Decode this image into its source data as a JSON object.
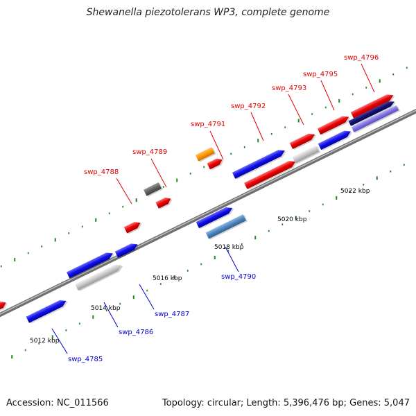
{
  "title": "Shewanella piezotolerans WP3, complete genome",
  "footer": {
    "accession": "Accession: NC_011566",
    "summary": "Topology: circular; Length: 5,396,476 bp; Genes: 5,047"
  },
  "colors": {
    "backbone": "#8a8a8a",
    "tick": "#1a8a1a",
    "label_red": "#e00000",
    "label_blue": "#0000cc"
  },
  "ruler_labels": [
    "5012 kbp",
    "5014 kbp",
    "5016 kbp",
    "5018 kbp",
    "5020 kbp",
    "5022 kbp"
  ],
  "features": [
    {
      "color": "red"
    },
    {
      "color": "blue"
    },
    {
      "color": "silver"
    },
    {
      "color": "blue"
    },
    {
      "color": "red"
    },
    {
      "color": "blue"
    },
    {
      "color": "gray"
    },
    {
      "color": "red"
    },
    {
      "color": "red"
    },
    {
      "color": "blue"
    },
    {
      "color": "steelblue"
    },
    {
      "color": "orange"
    },
    {
      "color": "red"
    },
    {
      "color": "blue"
    },
    {
      "color": "red"
    },
    {
      "color": "silver"
    },
    {
      "color": "red"
    },
    {
      "color": "blue"
    },
    {
      "color": "red"
    },
    {
      "color": "navy"
    },
    {
      "color": "lavender"
    },
    {
      "color": "red"
    }
  ],
  "gene_labels": [
    {
      "text": "swp_4788",
      "color": "red"
    },
    {
      "text": "swp_4789",
      "color": "red"
    },
    {
      "text": "swp_4791",
      "color": "red"
    },
    {
      "text": "swp_4792",
      "color": "red"
    },
    {
      "text": "swp_4793",
      "color": "red"
    },
    {
      "text": "swp_4795",
      "color": "red"
    },
    {
      "text": "swp_4796",
      "color": "red"
    },
    {
      "text": "swp_4785",
      "color": "blue"
    },
    {
      "text": "swp_4786",
      "color": "blue"
    },
    {
      "text": "swp_4787",
      "color": "blue"
    },
    {
      "text": "swp_4790",
      "color": "blue"
    }
  ]
}
